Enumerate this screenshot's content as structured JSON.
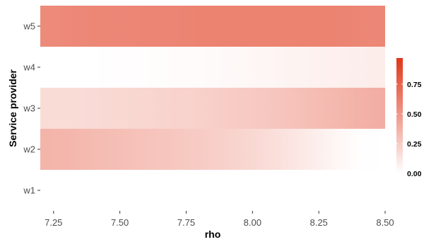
{
  "chart_data": {
    "type": "heatmap",
    "title": "",
    "xlabel": "rho",
    "ylabel": "Service provider",
    "x_ticks": [
      "7.25",
      "7.50",
      "7.75",
      "8.00",
      "8.25",
      "8.50"
    ],
    "x_tick_values": [
      7.25,
      7.5,
      7.75,
      8.0,
      8.25,
      8.5
    ],
    "xlim": [
      7.2,
      8.5
    ],
    "categories": [
      "w1",
      "w2",
      "w3",
      "w4",
      "w5"
    ],
    "x": [
      7.2,
      7.3,
      7.4,
      7.5,
      7.6,
      7.7,
      7.8,
      7.9,
      8.0,
      8.1,
      8.2,
      8.3,
      8.4,
      8.5
    ],
    "series": [
      {
        "values": [
          0.0,
          0.0,
          0.0,
          0.0,
          0.0,
          0.0,
          0.0,
          0.0,
          0.0,
          0.0,
          0.0,
          0.0,
          0.0,
          0.0
        ]
      },
      {
        "values": [
          0.36,
          0.35,
          0.33,
          0.31,
          0.29,
          0.27,
          0.25,
          0.22,
          0.19,
          0.15,
          0.1,
          0.05,
          0.01,
          0.0
        ]
      },
      {
        "values": [
          0.17,
          0.17,
          0.18,
          0.19,
          0.2,
          0.21,
          0.22,
          0.24,
          0.26,
          0.28,
          0.31,
          0.34,
          0.37,
          0.4
        ]
      },
      {
        "values": [
          0.0,
          0.0,
          0.0,
          0.01,
          0.01,
          0.02,
          0.02,
          0.03,
          0.04,
          0.05,
          0.06,
          0.07,
          0.08,
          0.09
        ]
      },
      {
        "values": [
          0.56,
          0.57,
          0.58,
          0.58,
          0.59,
          0.59,
          0.6,
          0.6,
          0.6,
          0.6,
          0.6,
          0.6,
          0.59,
          0.58
        ]
      }
    ],
    "color_scale": {
      "low": "#ffffff",
      "high": "#e0361a",
      "range": [
        0,
        0.97
      ],
      "ticks": [
        "0.00",
        "0.25",
        "0.50",
        "0.75"
      ],
      "tick_values": [
        0,
        0.25,
        0.5,
        0.75
      ]
    },
    "legend_position": "right",
    "grid": false
  }
}
